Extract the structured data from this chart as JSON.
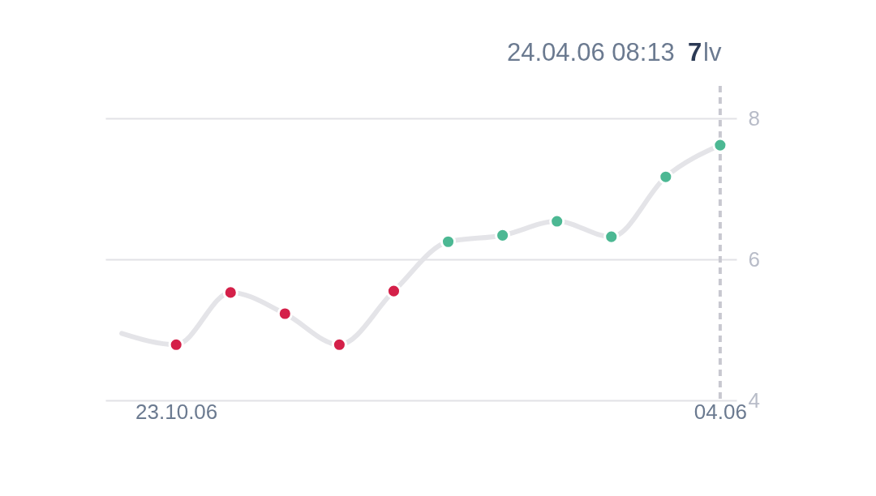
{
  "chart_data": {
    "type": "line",
    "categories": [
      null,
      "23.10.06",
      null,
      null,
      null,
      null,
      null,
      null,
      null,
      null,
      null,
      "04.06"
    ],
    "series": [
      {
        "color": "#e4e4e8",
        "colors": [
          null,
          "#d42049",
          "#d42049",
          "#d42049",
          "#d42049",
          "#d42049",
          "#4cb893",
          "#4cb893",
          "#4cb893",
          "#4cb893",
          "#4cb893",
          "#4cb893"
        ],
        "values": [
          4.95,
          4.79,
          5.53,
          5.23,
          4.79,
          5.55,
          6.25,
          6.34,
          6.54,
          6.32,
          7.17,
          7.62
        ]
      }
    ],
    "ylim": [
      4,
      8.46
    ],
    "yticks": [
      4,
      6,
      8
    ],
    "grid": "y",
    "marker": "circle",
    "line_style": "solid",
    "ref_lines": [
      {
        "axis": "x",
        "value": "04.06",
        "color": "#c8c8d0",
        "line_style": "dashed"
      }
    ],
    "annotations": [
      "24.04.06  08:13",
      "7",
      "lv"
    ]
  }
}
